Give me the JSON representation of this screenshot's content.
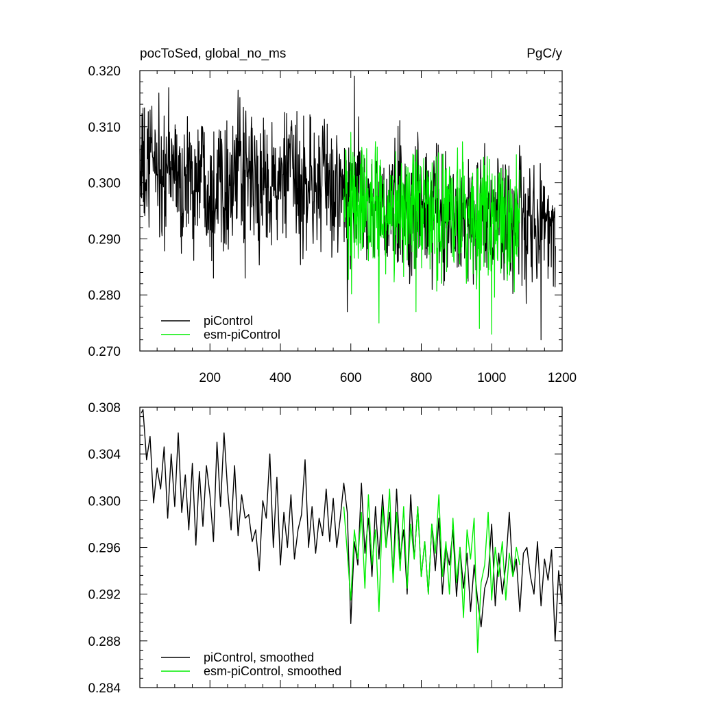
{
  "header": {
    "left_title": "pocToSed, global_no_ms",
    "right_units": "PgC/y"
  },
  "colors": {
    "piControl": "#000000",
    "esm_piControl": "#00ee00",
    "axis": "#000000",
    "background": "#ffffff"
  },
  "chart_data": [
    {
      "type": "line",
      "title": "pocToSed, global_no_ms",
      "units": "PgC/y",
      "xlabel": "",
      "ylabel": "",
      "xlim": [
        1,
        1200
      ],
      "ylim": [
        0.27,
        0.32
      ],
      "x_ticks": [
        200,
        400,
        600,
        800,
        1000,
        1200
      ],
      "y_ticks": [
        0.27,
        0.28,
        0.29,
        0.3,
        0.31,
        0.32
      ],
      "y_tick_labels": [
        "0.270",
        "0.280",
        "0.290",
        "0.300",
        "0.310",
        "0.320"
      ],
      "grid": false,
      "legend_position": "bottom-left",
      "series": [
        {
          "name": "piControl",
          "color": "#000000",
          "x_start": 1,
          "x_step": 20,
          "values": [
            0.304,
            0.3,
            0.306,
            0.299,
            0.302,
            0.303,
            0.298,
            0.301,
            0.3,
            0.304,
            0.298,
            0.302,
            0.301,
            0.299,
            0.303,
            0.3,
            0.302,
            0.297,
            0.301,
            0.3,
            0.299,
            0.302,
            0.3,
            0.298,
            0.301,
            0.299,
            0.3,
            0.298,
            0.299,
            0.297,
            0.296,
            0.298,
            0.297,
            0.295,
            0.296,
            0.294,
            0.295,
            0.297,
            0.294,
            0.296,
            0.295,
            0.293,
            0.296,
            0.294,
            0.295,
            0.296,
            0.294,
            0.293,
            0.292,
            0.295,
            0.293,
            0.294,
            0.292,
            0.293,
            0.295,
            0.291,
            0.294,
            0.292,
            0.293,
            0.291
          ],
          "spikes": [
            [
              30,
              0.313
            ],
            [
              55,
              0.316
            ],
            [
              210,
              0.283
            ],
            [
              300,
              0.283
            ],
            [
              430,
              0.31
            ],
            [
              590,
              0.277
            ],
            [
              610,
              0.319
            ],
            [
              790,
              0.309
            ],
            [
              1140,
              0.272
            ],
            [
              1198,
              0.304
            ]
          ]
        },
        {
          "name": "esm-piControl",
          "color": "#00ee00",
          "x_start": 580,
          "x_step": 20,
          "values": [
            0.297,
            0.296,
            0.294,
            0.297,
            0.295,
            0.293,
            0.296,
            0.294,
            0.297,
            0.295,
            0.293,
            0.295,
            0.296,
            0.294,
            0.293,
            0.296,
            0.295,
            0.293,
            0.294,
            0.292,
            0.295,
            0.293,
            0.294,
            0.293,
            0.294,
            0.295
          ],
          "spikes": [
            [
              600,
              0.309
            ],
            [
              680,
              0.275
            ],
            [
              785,
              0.277
            ],
            [
              965,
              0.274
            ],
            [
              1000,
              0.273
            ],
            [
              1070,
              0.305
            ]
          ]
        }
      ]
    },
    {
      "type": "line",
      "title": "",
      "xlabel": "",
      "ylabel": "",
      "xlim": [
        1,
        1200
      ],
      "ylim": [
        0.284,
        0.308
      ],
      "x_ticks": [
        200,
        400,
        600,
        800,
        1000,
        1200
      ],
      "y_ticks": [
        0.284,
        0.288,
        0.292,
        0.296,
        0.3,
        0.304,
        0.308
      ],
      "y_tick_labels": [
        "0.284",
        "0.288",
        "0.292",
        "0.296",
        "0.300",
        "0.304",
        "0.308"
      ],
      "grid": false,
      "legend_position": "bottom-left",
      "series": [
        {
          "name": "piControl, smoothed",
          "color": "#000000",
          "x": [
            5,
            10,
            20,
            30,
            40,
            50,
            60,
            70,
            80,
            90,
            100,
            110,
            120,
            130,
            140,
            150,
            160,
            170,
            180,
            190,
            200,
            210,
            220,
            230,
            240,
            250,
            260,
            270,
            280,
            290,
            300,
            310,
            320,
            330,
            340,
            350,
            360,
            370,
            380,
            390,
            400,
            410,
            420,
            430,
            440,
            450,
            460,
            470,
            480,
            490,
            500,
            510,
            520,
            530,
            540,
            550,
            560,
            570,
            580,
            590,
            600,
            610,
            620,
            630,
            640,
            650,
            660,
            670,
            680,
            690,
            700,
            710,
            720,
            730,
            740,
            750,
            760,
            770,
            780,
            790,
            800,
            810,
            820,
            830,
            840,
            850,
            860,
            870,
            880,
            890,
            900,
            910,
            920,
            930,
            940,
            950,
            960,
            970,
            980,
            990,
            1000,
            1010,
            1020,
            1030,
            1040,
            1050,
            1060,
            1070,
            1080,
            1090,
            1100,
            1110,
            1120,
            1130,
            1140,
            1150,
            1160,
            1170,
            1180,
            1190,
            1200
          ],
          "values": [
            0.3075,
            0.3078,
            0.3035,
            0.3055,
            0.2998,
            0.3028,
            0.301,
            0.3046,
            0.2985,
            0.304,
            0.2995,
            0.3058,
            0.299,
            0.3022,
            0.2975,
            0.3032,
            0.2962,
            0.3025,
            0.2978,
            0.303,
            0.3005,
            0.2965,
            0.305,
            0.2995,
            0.3058,
            0.301,
            0.2975,
            0.303,
            0.297,
            0.3005,
            0.2985,
            0.2988,
            0.2965,
            0.2975,
            0.294,
            0.3,
            0.2985,
            0.304,
            0.296,
            0.302,
            0.2945,
            0.299,
            0.296,
            0.3005,
            0.295,
            0.2975,
            0.2988,
            0.3035,
            0.296,
            0.2995,
            0.2955,
            0.2985,
            0.297,
            0.301,
            0.2965,
            0.3002,
            0.296,
            0.2985,
            0.3015,
            0.299,
            0.2895,
            0.2965,
            0.2945,
            0.3015,
            0.2955,
            0.2985,
            0.2935,
            0.2995,
            0.295,
            0.3005,
            0.296,
            0.299,
            0.2935,
            0.301,
            0.295,
            0.2975,
            0.292,
            0.3005,
            0.295,
            0.2995,
            0.2935,
            0.2965,
            0.292,
            0.298,
            0.294,
            0.2985,
            0.292,
            0.296,
            0.2945,
            0.2975,
            0.2918,
            0.296,
            0.2925,
            0.2955,
            0.2905,
            0.2945,
            0.2915,
            0.2892,
            0.2925,
            0.2935,
            0.298,
            0.291,
            0.2955,
            0.292,
            0.2945,
            0.299,
            0.2935,
            0.295,
            0.2905,
            0.2955,
            0.296,
            0.2935,
            0.292,
            0.2965,
            0.291,
            0.295,
            0.2932,
            0.2958,
            0.288,
            0.294,
            0.291
          ]
        },
        {
          "name": "esm-piControl, smoothed",
          "color": "#00ee00",
          "x": [
            580,
            590,
            600,
            610,
            620,
            630,
            640,
            650,
            660,
            670,
            680,
            690,
            700,
            710,
            720,
            730,
            740,
            750,
            760,
            770,
            780,
            790,
            800,
            810,
            820,
            830,
            840,
            850,
            860,
            870,
            880,
            890,
            900,
            910,
            920,
            930,
            940,
            950,
            960,
            970,
            980,
            990,
            1000,
            1010,
            1020,
            1030,
            1040,
            1050,
            1060,
            1070,
            1080
          ],
          "values": [
            0.2995,
            0.2955,
            0.2915,
            0.2975,
            0.295,
            0.299,
            0.2925,
            0.3005,
            0.2945,
            0.2975,
            0.2905,
            0.2995,
            0.296,
            0.301,
            0.293,
            0.299,
            0.294,
            0.2995,
            0.2925,
            0.298,
            0.295,
            0.2995,
            0.2935,
            0.2965,
            0.292,
            0.298,
            0.2955,
            0.3005,
            0.2935,
            0.2965,
            0.292,
            0.2985,
            0.293,
            0.296,
            0.29,
            0.2975,
            0.295,
            0.2985,
            0.287,
            0.293,
            0.2945,
            0.299,
            0.2915,
            0.296,
            0.2935,
            0.2965,
            0.2915,
            0.2955,
            0.2935,
            0.296,
            0.2945
          ]
        }
      ]
    }
  ]
}
